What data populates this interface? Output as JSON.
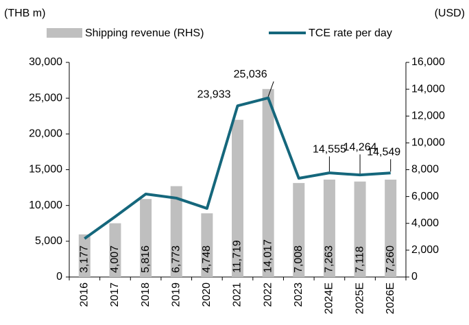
{
  "chart_data": {
    "type": "bar_line",
    "left_unit": "(THB m)",
    "right_unit": "(USD)",
    "categories": [
      "2016",
      "2017",
      "2018",
      "2019",
      "2020",
      "2021",
      "2022",
      "2023",
      "2024E",
      "2025E",
      "2026E"
    ],
    "series": [
      {
        "name": "Shipping revenue (RHS)",
        "type": "bar",
        "axis": "y2",
        "color": "#bfbfbf",
        "values": [
          3177,
          4007,
          5816,
          6773,
          4748,
          11719,
          14017,
          7008,
          7263,
          7118,
          7260
        ],
        "value_labels": [
          "3,177",
          "4,007",
          "5,816",
          "6,773",
          "4,748",
          "11,719",
          "14,017",
          "7,008",
          "7,263",
          "7,118",
          "7,260"
        ]
      },
      {
        "name": "TCE rate per day",
        "type": "line",
        "axis": "y",
        "color": "#15677c",
        "values": [
          5370,
          8440,
          11600,
          11030,
          9590,
          23933,
          25036,
          13800,
          14555,
          14264,
          14549
        ],
        "value_labels": [
          null,
          null,
          null,
          null,
          null,
          "23,933",
          "25,036",
          null,
          "14,555",
          "14,264",
          "14,549"
        ]
      }
    ],
    "ylim": [
      0,
      30000
    ],
    "yticks": [
      0,
      {
        "value": 5000,
        "label": "5,000"
      },
      {
        "value": 10000,
        "label": "10,000"
      },
      {
        "value": 15000,
        "label": "15,000"
      },
      {
        "value": 20000,
        "label": "20,000"
      },
      {
        "value": 25000,
        "label": "25,000"
      },
      {
        "value": 30000,
        "label": "30,000"
      }
    ],
    "y2lim": [
      0,
      16000
    ],
    "y2ticks": [
      0,
      {
        "value": 2000,
        "label": "2,000"
      },
      {
        "value": 4000,
        "label": "4,000"
      },
      {
        "value": 6000,
        "label": "6,000"
      },
      {
        "value": 8000,
        "label": "8,000"
      },
      {
        "value": 10000,
        "label": "10,000"
      },
      {
        "value": 12000,
        "label": "12,000"
      },
      {
        "value": 14000,
        "label": "14,000"
      },
      {
        "value": 16000,
        "label": "16,000"
      }
    ],
    "legend": "top"
  }
}
